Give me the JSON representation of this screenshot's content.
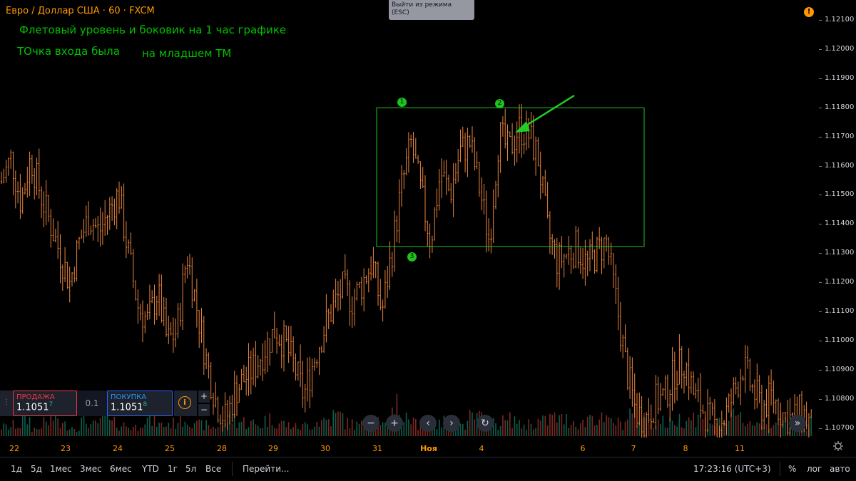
{
  "legend": {
    "title": "Евро / Доллар США · 60 · FXCM"
  },
  "annotations": {
    "line1": "Флетовый уровень и боковик на 1 час графике",
    "line2a": "ТОчка входа была",
    "line2b": "на  младшем ТМ"
  },
  "exit_tooltip": {
    "line1": "Выйти из режима",
    "line2": "(ESC)"
  },
  "alert_badge": "!",
  "markers": {
    "m1": "1",
    "m2": "2",
    "m3": "3"
  },
  "price_axis": [
    "1.12100",
    "1.12000",
    "1.11900",
    "1.11800",
    "1.11700",
    "1.11600",
    "1.11500",
    "1.11400",
    "1.11300",
    "1.11200",
    "1.11100",
    "1.11000",
    "1.10900",
    "1.10800",
    "1.10700"
  ],
  "time_axis": [
    "22",
    "23",
    "24",
    "25",
    "28",
    "29",
    "30",
    "31",
    "Ноя",
    "4",
    "6",
    "7",
    "8",
    "11"
  ],
  "trade_panel": {
    "sell_label": "ПРОДАЖА",
    "sell_price": "1.1051",
    "sell_sup": "7",
    "spread": "0.1",
    "buy_label": "ПОКУПКА",
    "buy_price": "1.1051",
    "buy_sup": "8",
    "info_icon": "i",
    "plus": "+",
    "minus": "−"
  },
  "chart_nav": {
    "zoom_out": "−",
    "zoom_in": "+",
    "scroll_left": "‹",
    "scroll_right": "›",
    "reset": "↻",
    "go_right": "»"
  },
  "bottom_bar": {
    "ranges": [
      "1д",
      "5д",
      "1мес",
      "3мес",
      "6мес",
      "YTD",
      "1г",
      "5л",
      "Все"
    ],
    "goto": "Перейти...",
    "clock": "17:23:16 (UTC+3)",
    "percent": "%",
    "log": "лог",
    "auto": "авто"
  },
  "colors": {
    "bar": "#e8843c",
    "annotation": "#00c000",
    "range_box": "#1ec31e",
    "arrow": "#22cc22",
    "axis_text": "#d1d4dc",
    "time_text": "#ff9800"
  },
  "chart_data": {
    "type": "ohlc",
    "title": "Евро / Доллар США · 60 · FXCM",
    "ylim": [
      1.1066,
      1.1213
    ],
    "range_box": {
      "top": 1.11768,
      "bottom": 1.11302
    },
    "key_points": [
      {
        "label": "1",
        "price": 1.1176
      },
      {
        "label": "2",
        "price": 1.1175
      },
      {
        "label": "3",
        "price": 1.1131
      }
    ],
    "close_path": [
      1.1152,
      1.116,
      1.1145,
      1.116,
      1.1148,
      1.1138,
      1.1128,
      1.1118,
      1.1132,
      1.114,
      1.1135,
      1.1142,
      1.1148,
      1.1128,
      1.111,
      1.1105,
      1.1115,
      1.1098,
      1.1102,
      1.1128,
      1.111,
      1.1092,
      1.1078,
      1.1072,
      1.1082,
      1.1086,
      1.109,
      1.1096,
      1.1102,
      1.1098,
      1.109,
      1.108,
      1.1092,
      1.1102,
      1.111,
      1.1116,
      1.1112,
      1.1118,
      1.1125,
      1.1108,
      1.1128,
      1.115,
      1.1165,
      1.1148,
      1.1132,
      1.1155,
      1.1148,
      1.1162,
      1.1165,
      1.115,
      1.1132,
      1.1168,
      1.1162,
      1.117,
      1.1168,
      1.116,
      1.1135,
      1.1125,
      1.1128,
      1.113,
      1.1124,
      1.1128,
      1.1132,
      1.1112,
      1.109,
      1.1075,
      1.1072,
      1.1078,
      1.108,
      1.1088,
      1.1092,
      1.108,
      1.1075,
      1.107,
      1.1072,
      1.108,
      1.109,
      1.1082,
      1.1076,
      1.108,
      1.1074,
      1.1072,
      1.1075,
      1.107
    ],
    "volume_path": [
      0.25,
      0.3,
      0.45,
      0.2,
      0.35,
      0.5,
      0.3,
      0.25,
      0.4,
      0.3,
      0.55,
      0.35,
      0.3,
      0.25,
      0.45,
      0.4,
      0.3,
      0.35,
      0.5,
      0.45,
      0.3,
      0.25,
      0.3,
      0.5,
      0.4,
      0.35,
      0.3,
      0.45,
      0.35,
      0.3,
      0.25,
      0.3,
      0.4,
      0.45,
      0.55,
      0.35,
      0.3,
      0.4,
      0.45,
      0.3,
      0.95,
      0.5,
      0.35,
      0.45,
      0.3,
      0.4,
      0.35,
      0.3,
      0.5,
      0.45,
      0.35,
      0.4,
      0.45,
      0.3,
      0.35,
      0.4,
      0.5,
      0.45,
      0.4,
      0.35,
      0.55,
      0.45,
      0.4,
      0.35,
      0.6,
      0.5,
      0.45,
      0.4,
      0.35,
      0.45,
      0.55,
      0.5,
      0.4,
      0.35,
      0.45,
      0.5,
      0.4,
      0.35,
      0.3,
      0.45,
      0.4,
      0.35,
      0.3,
      0.45
    ]
  }
}
